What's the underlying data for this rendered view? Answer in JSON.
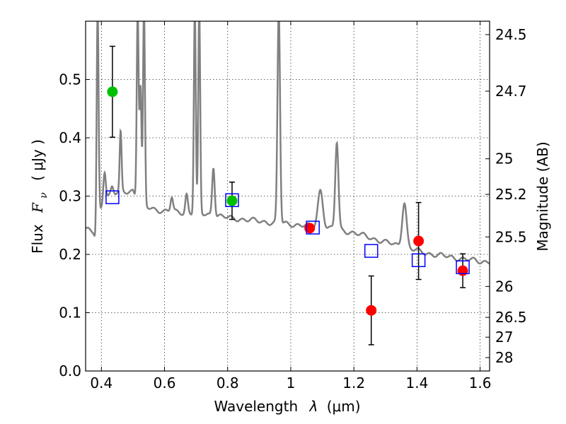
{
  "chart_data": {
    "type": "scatter",
    "xlabel": "Wavelength  λ (μm)",
    "ylabel": "Flux  F_ν  ( μJy )",
    "ylabel_parts": {
      "prefix": "Flux",
      "symbol": "F",
      "subscript": "ν",
      "unit": "( μJy )"
    },
    "xlabel_parts": {
      "prefix": "Wavelength",
      "symbol": "λ",
      "unit": "(μm)"
    },
    "y2label": "Magnitude (AB)",
    "xlim": [
      0.35,
      1.63
    ],
    "ylim": [
      0.0,
      0.6
    ],
    "grid": true,
    "x_ticks": [
      0.4,
      0.6,
      0.8,
      1.0,
      1.2,
      1.4,
      1.6
    ],
    "x_tick_labels": [
      "0.4",
      "0.6",
      "0.8",
      "1",
      "1.2",
      "1.4",
      "1.6"
    ],
    "y_ticks": [
      0.0,
      0.1,
      0.2,
      0.3,
      0.4,
      0.5
    ],
    "y_tick_labels": [
      "0.0",
      "0.1",
      "0.2",
      "0.3",
      "0.4",
      "0.5"
    ],
    "y2_ticks": [
      {
        "label": "24.5",
        "flux": 0.577
      },
      {
        "label": "24.7",
        "flux": 0.48
      },
      {
        "label": "25",
        "flux": 0.364
      },
      {
        "label": "25.2",
        "flux": 0.303
      },
      {
        "label": "25.5",
        "flux": 0.23
      },
      {
        "label": "26",
        "flux": 0.145
      },
      {
        "label": "26.5",
        "flux": 0.092
      },
      {
        "label": "27",
        "flux": 0.058
      },
      {
        "label": "28",
        "flux": 0.023
      }
    ],
    "series": [
      {
        "marker": "circle",
        "color": "#00c000",
        "points": [
          {
            "x": 0.435,
            "y": 0.479,
            "err": 0.078
          },
          {
            "x": 0.814,
            "y": 0.292,
            "err": 0.032
          }
        ]
      },
      {
        "marker": "circle",
        "color": "#ff0000",
        "points": [
          {
            "x": 1.06,
            "y": 0.245,
            "err": null
          },
          {
            "x": 1.255,
            "y": 0.104,
            "err": 0.059
          },
          {
            "x": 1.405,
            "y": 0.223,
            "err": 0.066
          },
          {
            "x": 1.545,
            "y": 0.172,
            "err": 0.029
          }
        ]
      },
      {
        "marker": "open-square",
        "color": "#0000ff",
        "points": [
          {
            "x": 0.435,
            "y": 0.298
          },
          {
            "x": 0.814,
            "y": 0.293
          },
          {
            "x": 1.07,
            "y": 0.246
          },
          {
            "x": 1.255,
            "y": 0.206
          },
          {
            "x": 1.405,
            "y": 0.19
          },
          {
            "x": 1.545,
            "y": 0.178
          }
        ]
      }
    ],
    "model_spectrum": {
      "color": "#808080",
      "continuum": [
        [
          0.35,
          0.243
        ],
        [
          0.375,
          0.237
        ],
        [
          0.385,
          0.22
        ],
        [
          0.395,
          0.275
        ],
        [
          0.42,
          0.3
        ],
        [
          0.45,
          0.305
        ],
        [
          0.5,
          0.31
        ],
        [
          0.52,
          0.285
        ],
        [
          0.55,
          0.28
        ],
        [
          0.6,
          0.274
        ],
        [
          0.65,
          0.272
        ],
        [
          0.7,
          0.27
        ],
        [
          0.75,
          0.268
        ],
        [
          0.8,
          0.263
        ],
        [
          0.85,
          0.26
        ],
        [
          0.9,
          0.257
        ],
        [
          0.95,
          0.254
        ],
        [
          1.0,
          0.252
        ],
        [
          1.05,
          0.249
        ],
        [
          1.1,
          0.246
        ],
        [
          1.15,
          0.243
        ],
        [
          1.2,
          0.237
        ],
        [
          1.25,
          0.229
        ],
        [
          1.3,
          0.221
        ],
        [
          1.35,
          0.214
        ],
        [
          1.4,
          0.206
        ],
        [
          1.45,
          0.2
        ],
        [
          1.5,
          0.196
        ],
        [
          1.55,
          0.192
        ],
        [
          1.6,
          0.188
        ],
        [
          1.63,
          0.188
        ]
      ],
      "lines": [
        {
          "x": 0.388,
          "peak": 0.62,
          "width": 0.003
        },
        {
          "x": 0.41,
          "peak": 0.345,
          "width": 0.004
        },
        {
          "x": 0.434,
          "peak": 0.315,
          "width": 0.004
        },
        {
          "x": 0.461,
          "peak": 0.408,
          "width": 0.003
        },
        {
          "x": 0.515,
          "peak": 0.62,
          "width": 0.003
        },
        {
          "x": 0.524,
          "peak": 0.485,
          "width": 0.003
        },
        {
          "x": 0.535,
          "peak": 0.62,
          "width": 0.003
        },
        {
          "x": 0.623,
          "peak": 0.298,
          "width": 0.004
        },
        {
          "x": 0.67,
          "peak": 0.303,
          "width": 0.004
        },
        {
          "x": 0.696,
          "peak": 0.62,
          "width": 0.003
        },
        {
          "x": 0.71,
          "peak": 0.62,
          "width": 0.003
        },
        {
          "x": 0.755,
          "peak": 0.352,
          "width": 0.004
        },
        {
          "x": 0.962,
          "peak": 0.62,
          "width": 0.004
        },
        {
          "x": 1.094,
          "peak": 0.31,
          "width": 0.008
        },
        {
          "x": 1.146,
          "peak": 0.392,
          "width": 0.005
        },
        {
          "x": 1.36,
          "peak": 0.29,
          "width": 0.007
        }
      ]
    }
  }
}
